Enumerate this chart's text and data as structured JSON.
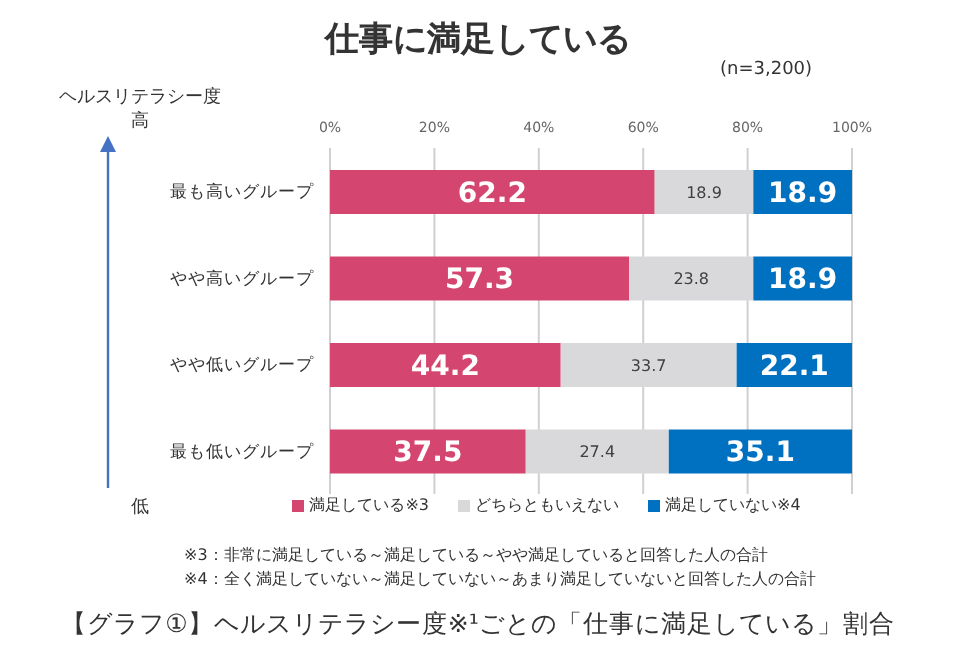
{
  "chart_data": {
    "type": "bar",
    "orientation": "horizontal",
    "stacked": true,
    "title": "仕事に満足している",
    "categories": [
      "最も高いグループ",
      "やや高いグループ",
      "やや低いグループ",
      "最も低いグループ"
    ],
    "series": [
      {
        "name": "満足している※3",
        "color": "#d4466f",
        "values": [
          62.2,
          57.3,
          44.2,
          37.5
        ]
      },
      {
        "name": "どちらともいえない",
        "color": "#d9d9dc",
        "values": [
          18.9,
          23.8,
          33.7,
          27.4
        ]
      },
      {
        "name": "満足していない※4",
        "color": "#0070c0",
        "values": [
          18.9,
          18.9,
          22.1,
          35.1
        ]
      }
    ],
    "xlim": [
      0,
      100
    ],
    "xticks": [
      {
        "value": 0,
        "label": "0%"
      },
      {
        "value": 20,
        "label": "20%"
      },
      {
        "value": 40,
        "label": "40%"
      },
      {
        "value": 60,
        "label": "60%"
      },
      {
        "value": 80,
        "label": "80%"
      },
      {
        "value": 100,
        "label": "100%"
      }
    ],
    "grid": "x",
    "legend": "bottom",
    "data_labels": true,
    "annotations": [
      "(n=3,200)",
      "ヘルスリテラシー度",
      "高",
      "低",
      "※3：非常に満足している～満足している～やや満足していると回答した人の合計",
      "※4：全く満足していない～満足していない～あまり満足していないと回答した人の合計",
      "【グラフ①】ヘルスリテラシー度※¹ごとの「仕事に満足している」割合"
    ]
  }
}
